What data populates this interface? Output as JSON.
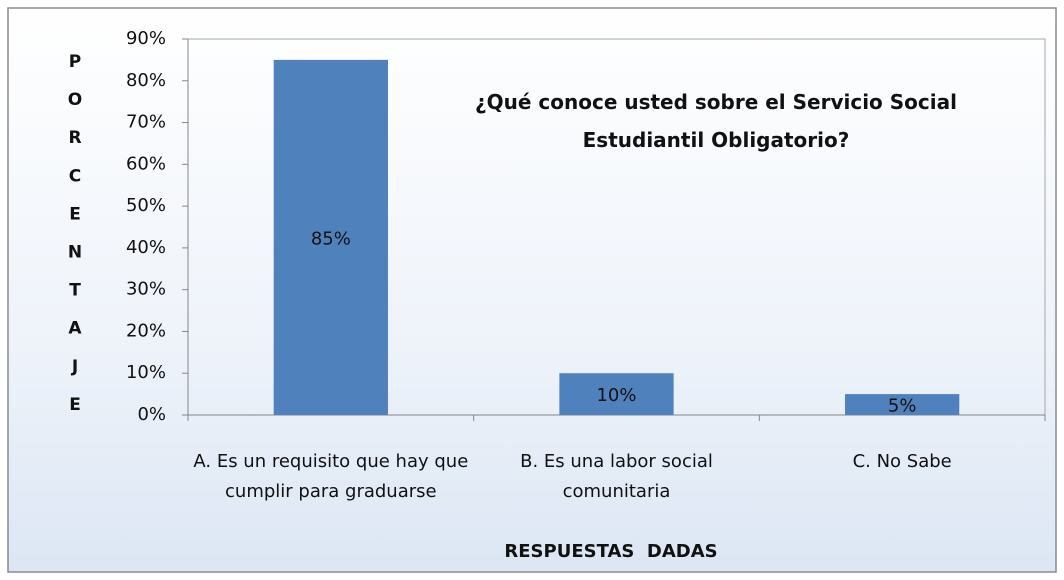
{
  "chart_data": {
    "type": "bar",
    "title": "¿Qué conoce usted sobre el Servicio Social Estudiantil Obligatorio?",
    "xlabel": "RESPUESTAS  DADAS",
    "ylabel": "PORCENTAJE",
    "categories": [
      "A. Es un requisito que hay que cumplir para graduarse",
      "B. Es una labor social comunitaria",
      "C. No Sabe"
    ],
    "values": [
      85,
      10,
      5
    ],
    "value_labels": [
      "85%",
      "10%",
      "5%"
    ],
    "color": "#4f81bd",
    "ylim": [
      0,
      90
    ],
    "yticks": [
      {
        "value": 0,
        "label": "0%"
      },
      {
        "value": 10,
        "label": "10%"
      },
      {
        "value": 20,
        "label": "20%"
      },
      {
        "value": 30,
        "label": "30%"
      },
      {
        "value": 40,
        "label": "40%"
      },
      {
        "value": 50,
        "label": "50%"
      },
      {
        "value": 60,
        "label": "60%"
      },
      {
        "value": 70,
        "label": "70%"
      },
      {
        "value": 80,
        "label": "80%"
      },
      {
        "value": 90,
        "label": "90%"
      }
    ],
    "grid": false
  }
}
